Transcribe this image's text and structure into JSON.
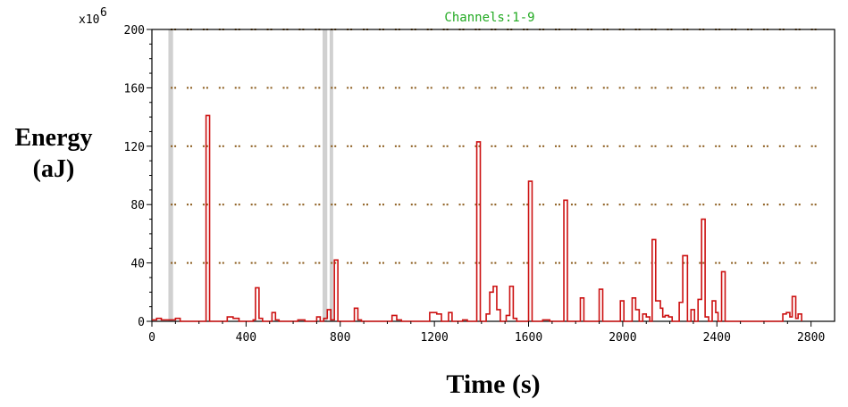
{
  "chart_data": {
    "type": "line",
    "legend": "Channels:1-9",
    "legend_placement": "top-center",
    "multiplier_label": "x10",
    "multiplier_exp": "6",
    "ylabel_line1": "Energy",
    "ylabel_line2": "(aJ)",
    "xlabel": "Time (s)",
    "xlim": [
      0,
      2900
    ],
    "ylim": [
      0,
      200
    ],
    "x_ticks": [
      0,
      400,
      800,
      1200,
      1600,
      2000,
      2400,
      2800
    ],
    "y_ticks": [
      0,
      40,
      80,
      120,
      160,
      200
    ],
    "grid": "dotted",
    "series_color": "#cc1111",
    "shaded_regions": [
      [
        70,
        90
      ],
      [
        725,
        745
      ],
      [
        755,
        770
      ]
    ],
    "series": [
      {
        "type": "step",
        "values": [
          [
            0,
            1
          ],
          [
            20,
            2
          ],
          [
            40,
            1
          ],
          [
            100,
            2
          ],
          [
            120,
            0
          ],
          [
            220,
            0
          ],
          [
            230,
            141
          ],
          [
            245,
            0
          ],
          [
            320,
            3
          ],
          [
            345,
            2
          ],
          [
            370,
            0
          ],
          [
            430,
            1
          ],
          [
            440,
            23
          ],
          [
            455,
            2
          ],
          [
            470,
            0
          ],
          [
            510,
            6
          ],
          [
            525,
            1
          ],
          [
            540,
            0
          ],
          [
            620,
            1
          ],
          [
            650,
            0
          ],
          [
            700,
            3
          ],
          [
            715,
            0
          ],
          [
            730,
            2
          ],
          [
            745,
            8
          ],
          [
            760,
            1
          ],
          [
            775,
            42
          ],
          [
            790,
            0
          ],
          [
            860,
            9
          ],
          [
            875,
            1
          ],
          [
            890,
            0
          ],
          [
            1020,
            4
          ],
          [
            1040,
            1
          ],
          [
            1060,
            0
          ],
          [
            1180,
            6
          ],
          [
            1210,
            5
          ],
          [
            1230,
            0
          ],
          [
            1260,
            6
          ],
          [
            1275,
            0
          ],
          [
            1320,
            1
          ],
          [
            1340,
            0
          ],
          [
            1380,
            123
          ],
          [
            1395,
            0
          ],
          [
            1420,
            5
          ],
          [
            1435,
            20
          ],
          [
            1450,
            24
          ],
          [
            1465,
            8
          ],
          [
            1480,
            0
          ],
          [
            1505,
            4
          ],
          [
            1520,
            24
          ],
          [
            1535,
            2
          ],
          [
            1550,
            0
          ],
          [
            1600,
            96
          ],
          [
            1615,
            0
          ],
          [
            1660,
            1
          ],
          [
            1690,
            0
          ],
          [
            1750,
            83
          ],
          [
            1765,
            0
          ],
          [
            1820,
            16
          ],
          [
            1835,
            0
          ],
          [
            1900,
            22
          ],
          [
            1915,
            0
          ],
          [
            1990,
            14
          ],
          [
            2005,
            0
          ],
          [
            2040,
            16
          ],
          [
            2055,
            8
          ],
          [
            2070,
            0
          ],
          [
            2085,
            5
          ],
          [
            2100,
            3
          ],
          [
            2115,
            0
          ],
          [
            2125,
            56
          ],
          [
            2140,
            14
          ],
          [
            2160,
            9
          ],
          [
            2170,
            3
          ],
          [
            2180,
            4
          ],
          [
            2195,
            3
          ],
          [
            2210,
            0
          ],
          [
            2240,
            13
          ],
          [
            2255,
            45
          ],
          [
            2275,
            0
          ],
          [
            2290,
            8
          ],
          [
            2305,
            0
          ],
          [
            2320,
            15
          ],
          [
            2335,
            70
          ],
          [
            2350,
            3
          ],
          [
            2365,
            0
          ],
          [
            2380,
            14
          ],
          [
            2395,
            6
          ],
          [
            2405,
            0
          ],
          [
            2420,
            34
          ],
          [
            2435,
            0
          ],
          [
            2680,
            5
          ],
          [
            2695,
            6
          ],
          [
            2710,
            3
          ],
          [
            2720,
            17
          ],
          [
            2735,
            2
          ],
          [
            2745,
            5
          ],
          [
            2760,
            0
          ]
        ]
      }
    ]
  }
}
